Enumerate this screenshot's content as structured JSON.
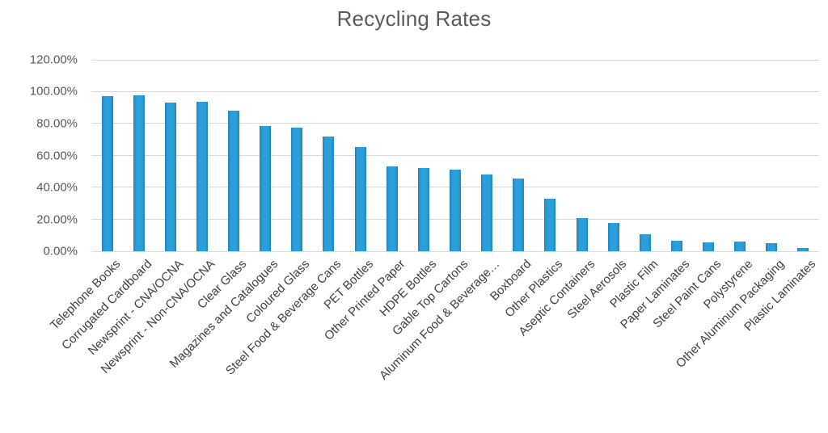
{
  "chart_data": {
    "type": "bar",
    "title": "Recycling Rates",
    "categories": [
      "Telephone Books",
      "Corrugated Cardboard",
      "Newsprint - CNA/OCNA",
      "Newsprint - Non-CNA/OCNA",
      "Clear Glass",
      "Magazines and Catalogues",
      "Coloured Glass",
      "Steel Food & Beverage Cans",
      "PET Bottles",
      "Other Printed Paper",
      "HDPE Bottles",
      "Gable Top Cartons",
      "Aluminum Food & Beverage…",
      "Boxboard",
      "Other Plastics",
      "Aseptic Containers",
      "Steel Aerosols",
      "Plastic Film",
      "Paper Laminates",
      "Steel Paint Cans",
      "Polystyrene",
      "Other Aluminum Packaging",
      "Plastic Laminates"
    ],
    "values": [
      97,
      97.5,
      93,
      93.5,
      88,
      78.5,
      77.5,
      72,
      65.5,
      53,
      52,
      51,
      48,
      45.5,
      33,
      21,
      17.5,
      10.5,
      6.5,
      5.5,
      6,
      5,
      2
    ],
    "unit": "%",
    "xlabel": "",
    "ylabel": "",
    "ylim": [
      0,
      120
    ],
    "ytick_step": 20,
    "ytick_labels": [
      "120.00%",
      "100.00%",
      "80.00%",
      "60.00%",
      "40.00%",
      "20.00%",
      "0.00%"
    ],
    "grid": true,
    "legend": "none",
    "x_label_rotation_deg": 45,
    "colors": {
      "bar": "#2B9FD9",
      "bar_edge": "#1F85C3",
      "gridline": "#D9D9D9",
      "title": "#595959",
      "y_label": "#595959",
      "x_label": "#404040",
      "background": "#FFFFFF"
    }
  }
}
